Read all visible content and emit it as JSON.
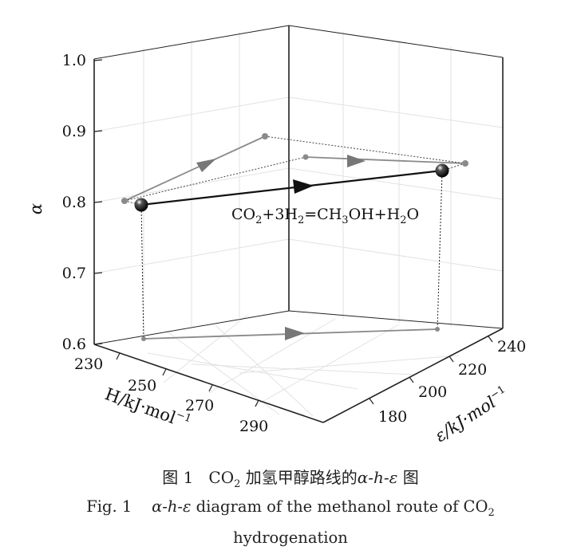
{
  "axes": {
    "alpha": {
      "label": "α",
      "ticks": [
        "1.0",
        "0.9",
        "0.8",
        "0.7",
        "0.6"
      ]
    },
    "H": {
      "label": "H/kJ·mol",
      "label_sup": "−1",
      "ticks": [
        "230",
        "250",
        "270",
        "290"
      ]
    },
    "epsilon": {
      "label": "ε/kJ·mol",
      "label_sup": "−1",
      "ticks": [
        "240",
        "220",
        "200",
        "180"
      ]
    }
  },
  "reaction": {
    "text_parts": [
      "CO",
      "2",
      "+3H",
      "2",
      "=CH",
      "3",
      "OH+H",
      "2",
      "O"
    ]
  },
  "caption": {
    "cn_fig": "图 1",
    "cn_mid_a": "CO",
    "cn_mid_sub": "2",
    "cn_mid_b": " 加氢甲醇路线的",
    "cn_axes": "α-h-ε",
    "cn_end": " 图",
    "en_fig": "Fig. 1",
    "en_axes": "α-h-ε",
    "en_text": " diagram of the methanol route of CO",
    "en_sub": "2",
    "en_line2": "hydrogenation"
  }
}
